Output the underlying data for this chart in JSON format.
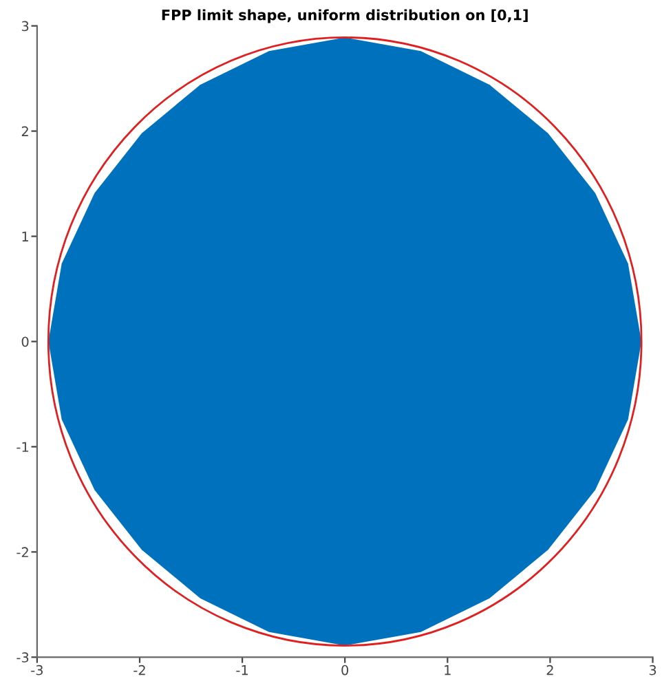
{
  "chart_data": {
    "type": "area",
    "title": "FPP limit shape, uniform distribution on [0,1]",
    "xlim": [
      -3,
      3
    ],
    "ylim": [
      -3,
      3
    ],
    "xticks": [
      -3,
      -2,
      -1,
      0,
      1,
      2,
      3
    ],
    "yticks": [
      -3,
      -2,
      -1,
      0,
      1,
      2,
      3
    ],
    "grid": false,
    "legend": false,
    "series": [
      {
        "color": "#0072bd",
        "x": [
          2.89,
          2.76,
          2.44,
          1.98,
          1.41,
          0.74,
          0,
          -0.74,
          -1.41,
          -1.98,
          -2.44,
          -2.76,
          -2.89,
          -2.76,
          -2.44,
          -1.98,
          -1.41,
          -0.74,
          0,
          0.74,
          1.41,
          1.98,
          2.44,
          2.76
        ],
        "values": [
          0,
          0.74,
          1.41,
          1.98,
          2.44,
          2.76,
          2.89,
          2.76,
          2.44,
          1.98,
          1.41,
          0.74,
          0,
          -0.74,
          -1.41,
          -1.98,
          -2.44,
          -2.76,
          -2.89,
          -2.76,
          -2.44,
          -1.98,
          -1.41,
          -0.74
        ]
      }
    ]
  }
}
